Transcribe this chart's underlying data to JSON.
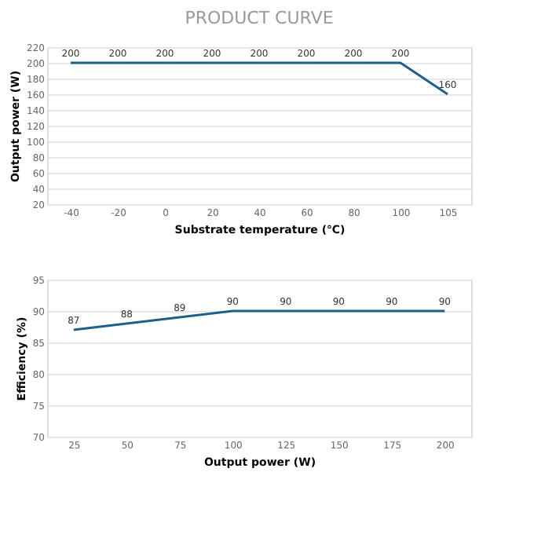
{
  "chart_data": [
    {
      "type": "line",
      "title": "PRODUCT CURVE",
      "xlabel": "Substrate temperature (℃)",
      "ylabel": "Output power (W)",
      "categories": [
        "-40",
        "-20",
        "0",
        "20",
        "40",
        "60",
        "80",
        "100",
        "105"
      ],
      "series": [
        {
          "color": "#1f5f8b",
          "values": [
            200,
            200,
            200,
            200,
            200,
            200,
            200,
            200,
            160
          ]
        }
      ],
      "ylim": [
        20,
        220
      ],
      "yticks": [
        20,
        40,
        60,
        80,
        100,
        120,
        140,
        160,
        180,
        200,
        220
      ],
      "grid": "y",
      "data_labels": true,
      "marker": "none",
      "line_style": "solid"
    },
    {
      "type": "line",
      "xlabel": "Output power (W)",
      "ylabel": "Efficiency (%)",
      "categories": [
        "25",
        "50",
        "75",
        "100",
        "125",
        "150",
        "175",
        "200"
      ],
      "series": [
        {
          "color": "#1f5f8b",
          "values": [
            87,
            88,
            89,
            90,
            90,
            90,
            90,
            90
          ]
        }
      ],
      "ylim": [
        70,
        95
      ],
      "yticks": [
        70,
        75,
        80,
        85,
        90,
        95
      ],
      "grid": "y",
      "data_labels": true,
      "marker": "none",
      "line_style": "solid"
    }
  ]
}
